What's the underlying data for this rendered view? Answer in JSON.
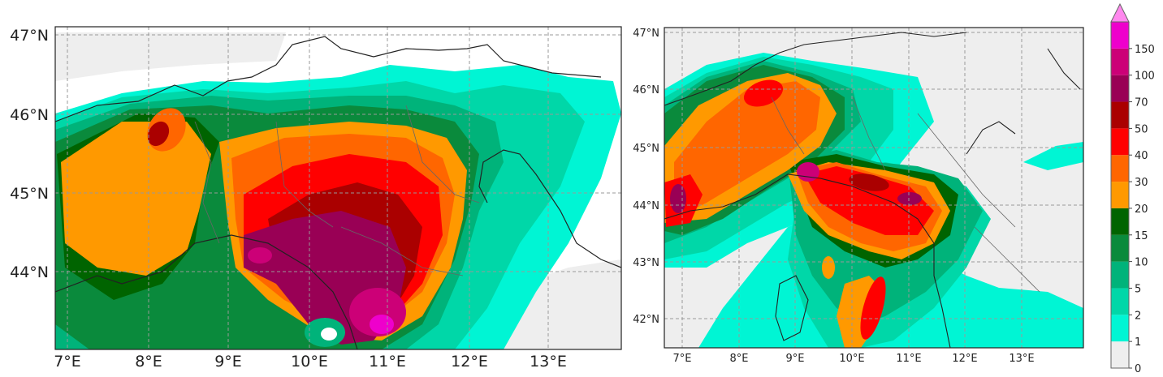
{
  "panels": [
    {
      "id": "left",
      "lat_labels": [
        "47°N",
        "46°N",
        "45°N",
        "44°N"
      ],
      "lon_labels": [
        "7°E",
        "8°E",
        "9°E",
        "10°E",
        "11°E",
        "12°E",
        "13°E"
      ]
    },
    {
      "id": "right",
      "lat_labels": [
        "47°N",
        "46°N",
        "45°N",
        "44°N",
        "43°N",
        "42°N"
      ],
      "lon_labels": [
        "7°E",
        "8°E",
        "9°E",
        "10°E",
        "11°E",
        "12°E",
        "13°E"
      ]
    }
  ],
  "colorbar": {
    "levels": [
      "0",
      "1",
      "2",
      "5",
      "10",
      "15",
      "20",
      "30",
      "40",
      "50",
      "70",
      "100",
      "150"
    ],
    "colors": [
      "#eeeeee",
      "#00f5d4",
      "#00d7a8",
      "#00b37a",
      "#0a8a3c",
      "#006400",
      "#ff9900",
      "#ff6600",
      "#ff0000",
      "#aa0000",
      "#990055",
      "#cc0077",
      "#ee00cc"
    ],
    "extend_color": "#ff88ee"
  }
}
